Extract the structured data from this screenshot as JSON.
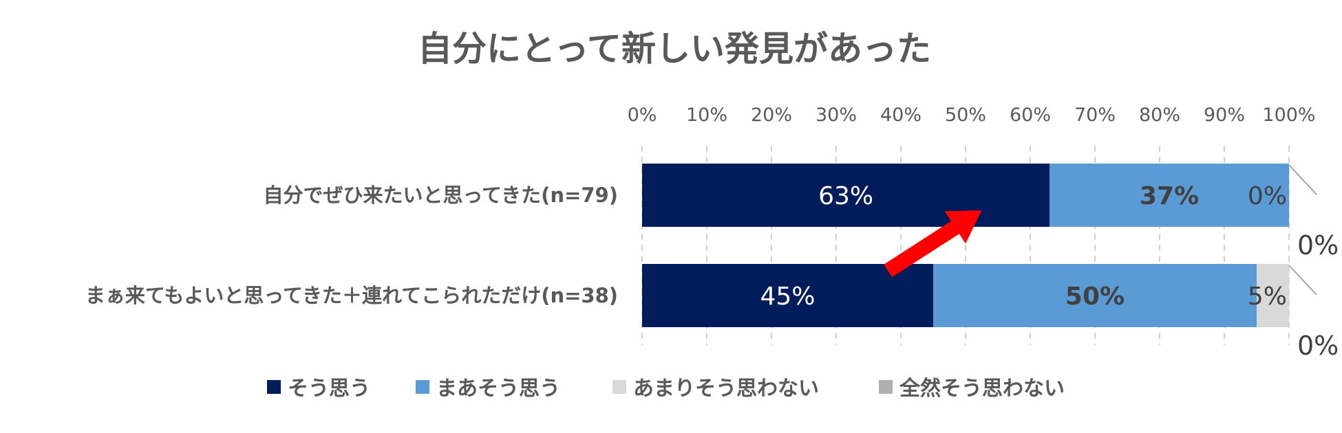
{
  "chart_data": {
    "type": "bar",
    "orientation": "horizontal",
    "stacked": true,
    "title": "自分にとって新しい発見があった",
    "xlim": [
      0,
      100
    ],
    "x_ticks": [
      "0%",
      "10%",
      "20%",
      "30%",
      "40%",
      "50%",
      "60%",
      "70%",
      "80%",
      "90%",
      "100%"
    ],
    "categories": [
      "自分でぜひ来たいと思ってきた(n=79)",
      "まぁ来てもよいと思ってきた＋連れてこられただけ(n=38)"
    ],
    "series": [
      {
        "name": "そう思う",
        "color": "#001c5a",
        "values": [
          63,
          45
        ],
        "labels": [
          "63%",
          "45%"
        ],
        "label_color": "#ffffff",
        "label_bold": false
      },
      {
        "name": "まあそう思う",
        "color": "#5b9bd5",
        "values": [
          37,
          50
        ],
        "labels": [
          "37%",
          "50%"
        ],
        "label_color": "#404040",
        "label_bold": true
      },
      {
        "name": "あまりそう思わない",
        "color": "#d9d9d9",
        "values": [
          0,
          5
        ],
        "labels": [
          "0%",
          "5%"
        ],
        "label_color": "#404040",
        "label_bold": false
      },
      {
        "name": "全然そう思わない",
        "color": "#b0b0b0",
        "values": [
          0,
          0
        ],
        "labels": [
          "0%",
          "0%"
        ],
        "label_color": "#404040",
        "label_bold": false
      }
    ],
    "grid": "vertical-dashed",
    "legend_position": "bottom",
    "annotation": {
      "type": "arrow",
      "color": "#ff0000",
      "from": [
        38,
        1
      ],
      "to": [
        52.5,
        0
      ]
    }
  }
}
